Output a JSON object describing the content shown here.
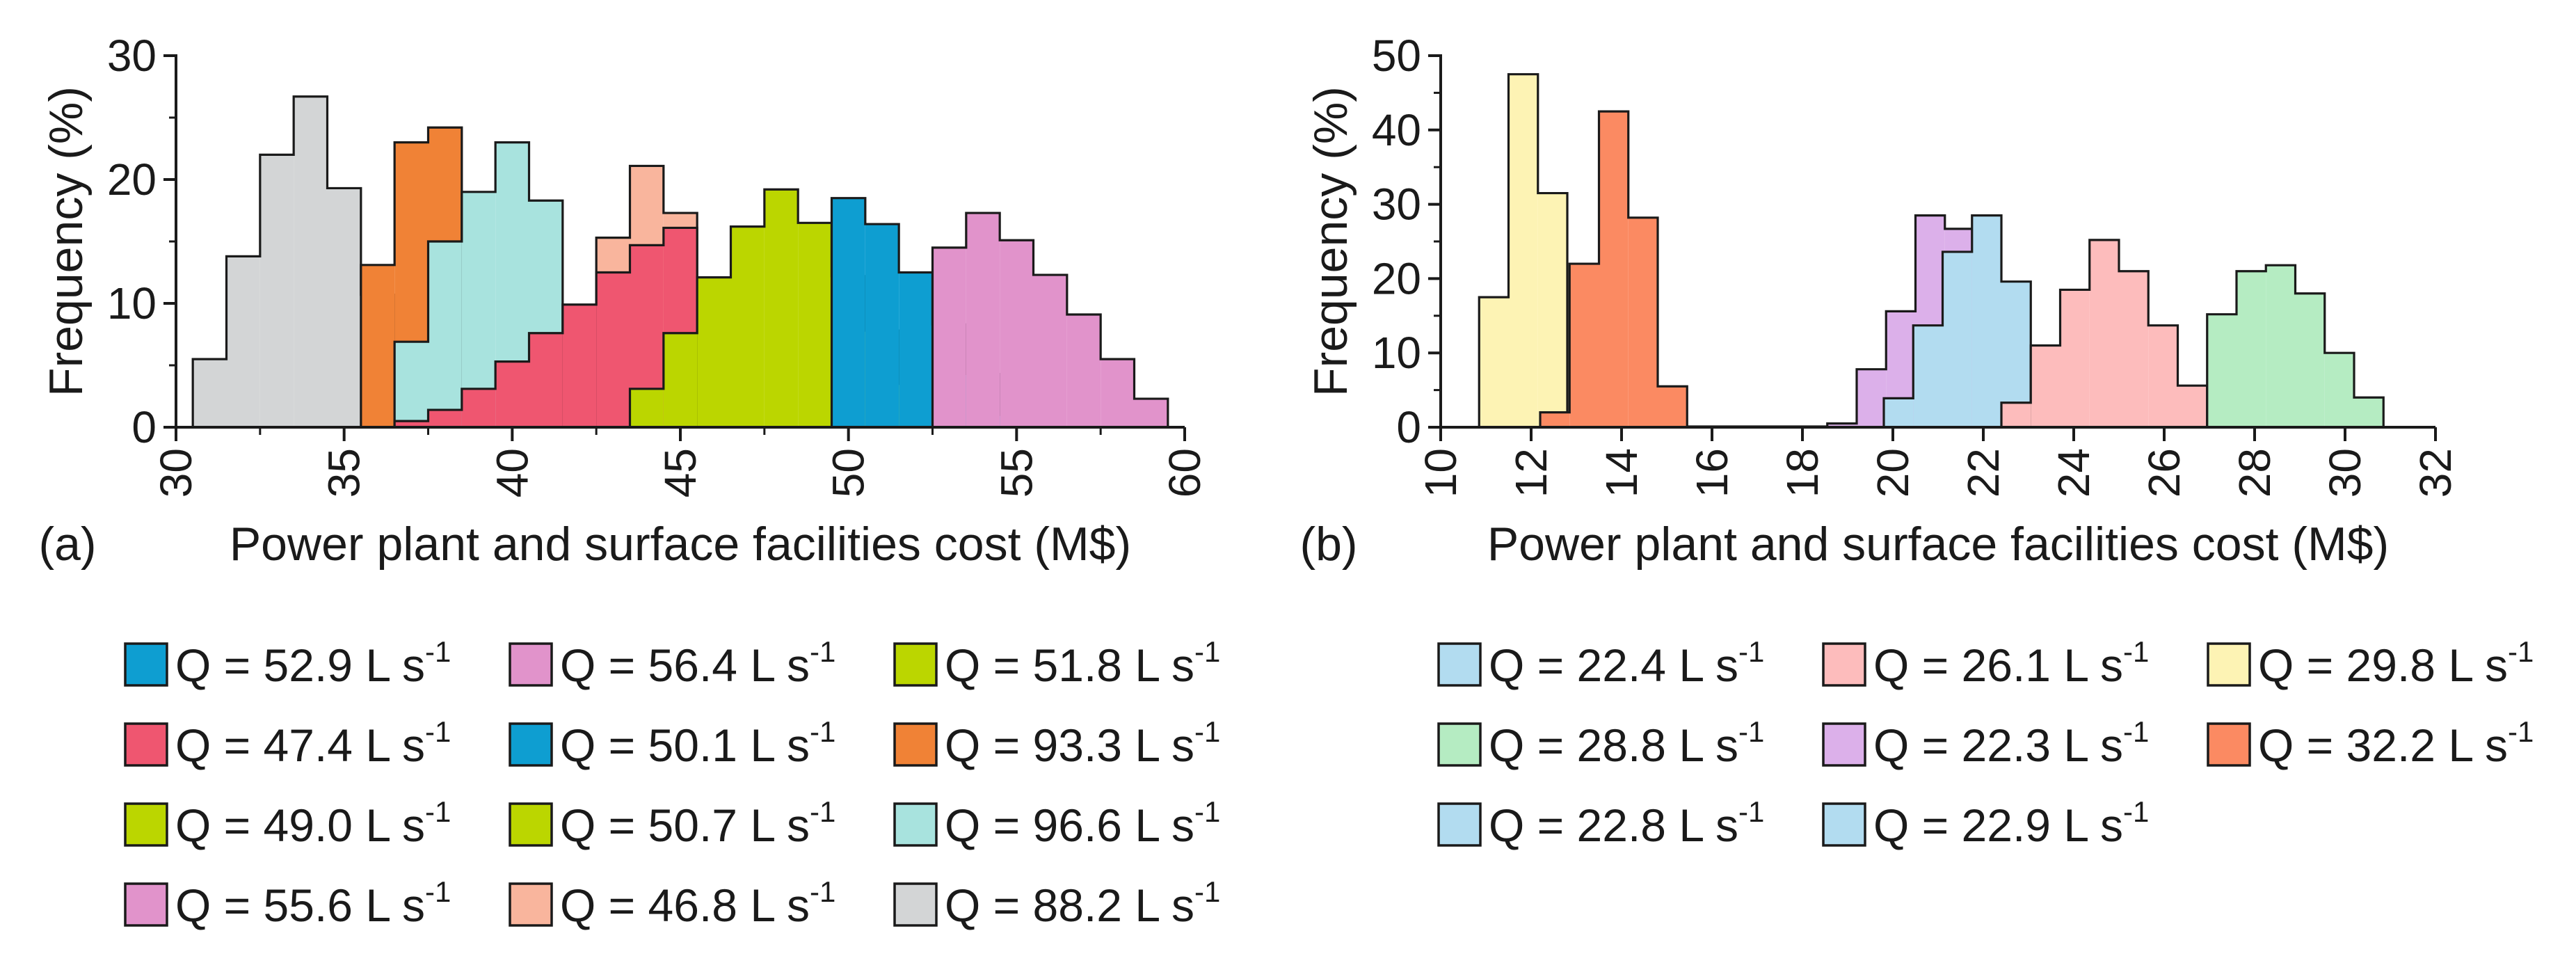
{
  "panels": [
    {
      "panel_label": "(a)",
      "chart_data": {
        "type": "histogram",
        "xlabel": "Power plant and surface facilities cost (M$)",
        "ylabel": "Frequency (%)",
        "xlim": [
          30,
          60
        ],
        "ylim": [
          0,
          30
        ],
        "x_ticks": [
          30,
          35,
          40,
          45,
          50,
          55,
          60
        ],
        "y_ticks": [
          0,
          10,
          20,
          30
        ],
        "series": [
          {
            "name": "Q = 88.2 L s",
            "color": "#d3d5d6",
            "bin_edges": [
              30.5,
              31.5,
              32.5,
              33.5,
              34.5,
              35.5,
              36.5,
              37.5
            ],
            "values": [
              5.5,
              13.8,
              22.0,
              26.7,
              19.3,
              10.7,
              2.5
            ]
          },
          {
            "name": "Q = 93.3 L s",
            "color": "#f08236",
            "bin_edges": [
              35.5,
              36.5,
              37.5,
              38.5
            ],
            "values": [
              13.1,
              23.0,
              24.2
            ]
          },
          {
            "name": "Q = 96.6 L s",
            "color": "#a8e3de",
            "bin_edges": [
              36.5,
              37.5,
              38.5,
              39.5,
              40.5,
              41.5
            ],
            "values": [
              6.9,
              15.0,
              19.0,
              23.0,
              18.3
            ]
          },
          {
            "name": "Q = 46.8 L s",
            "color": "#f9b59d",
            "bin_edges": [
              42.5,
              43.5,
              44.5,
              45.5
            ],
            "values": [
              15.3,
              21.1,
              17.3
            ]
          },
          {
            "name": "Q = 47.4 L s",
            "color": "#ef5670",
            "bin_edges": [
              36.5,
              37.5,
              38.5,
              39.5,
              40.5,
              41.5,
              42.5,
              43.5,
              44.5,
              45.5
            ],
            "values": [
              0.5,
              1.4,
              3.1,
              5.3,
              7.6,
              9.9,
              12.5,
              14.7,
              16.1
            ]
          },
          {
            "name": "Q = 51.8 L s",
            "color": "#bbd600",
            "bin_edges": [
              43.5,
              44.5,
              45.5,
              46.5,
              47.5,
              48.5,
              49.5,
              50.5,
              51.5,
              52.5
            ],
            "values": [
              3.1,
              7.6,
              12.1,
              16.2,
              19.2,
              16.5,
              12.2,
              7.8,
              3.5
            ]
          },
          {
            "name": "Q = 50.1 L s",
            "color": "#0e9ed1",
            "bin_edges": [
              49.5,
              50.5,
              51.5,
              52.5,
              53.5,
              54.5,
              55.5
            ],
            "values": [
              18.5,
              16.4,
              12.5,
              8.3,
              4.3,
              1.0
            ]
          },
          {
            "name": "Q = 56.4 L s",
            "color": "#e193cb",
            "bin_edges": [
              52.5,
              53.5,
              54.5,
              55.5,
              56.5,
              57.5,
              58.5,
              59.5
            ],
            "values": [
              14.5,
              17.3,
              15.1,
              12.3,
              9.1,
              5.5,
              2.3
            ]
          }
        ]
      },
      "legend": [
        {
          "label": "Q = 52.9 L s",
          "sup": "-1",
          "color": "#0e9ed1"
        },
        {
          "label": "Q = 56.4 L s",
          "sup": "-1",
          "color": "#e193cb"
        },
        {
          "label": "Q = 51.8 L s",
          "sup": "-1",
          "color": "#bbd600"
        },
        {
          "label": "Q = 47.4 L s",
          "sup": "-1",
          "color": "#ef5670"
        },
        {
          "label": "Q = 50.1 L s",
          "sup": "-1",
          "color": "#0e9ed1"
        },
        {
          "label": "Q = 93.3 L s",
          "sup": "-1",
          "color": "#f08236"
        },
        {
          "label": "Q = 49.0 L s",
          "sup": "-1",
          "color": "#bbd600"
        },
        {
          "label": "Q = 50.7 L s",
          "sup": "-1",
          "color": "#bbd600"
        },
        {
          "label": "Q = 96.6 L s",
          "sup": "-1",
          "color": "#a8e3de"
        },
        {
          "label": "Q = 55.6 L s",
          "sup": "-1",
          "color": "#e193cb"
        },
        {
          "label": "Q = 46.8 L s",
          "sup": "-1",
          "color": "#f9b59d"
        },
        {
          "label": "Q = 88.2 L s",
          "sup": "-1",
          "color": "#d3d5d6"
        }
      ]
    },
    {
      "panel_label": "(b)",
      "chart_data": {
        "type": "histogram",
        "xlabel": "Power plant and surface facilities cost (M$)",
        "ylabel": "Frequency (%)",
        "xlim": [
          10,
          32
        ],
        "ylim": [
          0,
          50
        ],
        "x_ticks": [
          10,
          12,
          14,
          16,
          18,
          20,
          22,
          24,
          26,
          28,
          30,
          32
        ],
        "y_ticks": [
          0,
          10,
          20,
          30,
          40,
          50
        ],
        "series": [
          {
            "name": "Q = 29.8 L s",
            "color": "#fdf3b4",
            "bin_edges": [
              10.85,
              11.5,
              12.15,
              12.8
            ],
            "values": [
              17.5,
              47.5,
              31.5
            ]
          },
          {
            "name": "Q = 32.2 L s",
            "color": "#fb8a62",
            "bin_edges": [
              12.2,
              12.85,
              13.5,
              14.15,
              14.8,
              15.45,
              16.1,
              16.75,
              17.4,
              18.05,
              18.7
            ],
            "values": [
              2.0,
              22.0,
              42.5,
              28.2,
              5.5,
              0.1,
              0.1,
              0.1,
              0.1,
              0.1
            ]
          },
          {
            "name": "Q = 22.3 L s",
            "color": "#dcb0ea",
            "bin_edges": [
              18.55,
              19.2,
              19.85,
              20.5,
              21.15,
              21.8,
              22.45
            ],
            "values": [
              0.5,
              7.8,
              15.6,
              28.5,
              26.7,
              17.8
            ]
          },
          {
            "name": "Q = 22.4 L s",
            "color": "#b2dcf0",
            "bin_edges": [
              19.8,
              20.45,
              21.1,
              21.75,
              22.4,
              23.05
            ],
            "values": [
              3.9,
              13.7,
              23.6,
              28.5,
              19.6
            ]
          },
          {
            "name": "Q = 26.1 L s",
            "color": "#fdbcbc",
            "bin_edges": [
              22.4,
              23.05,
              23.7,
              24.35,
              25.0,
              25.65,
              26.3,
              26.95
            ],
            "values": [
              3.3,
              11.0,
              18.5,
              25.2,
              21.0,
              13.7,
              5.6
            ]
          },
          {
            "name": "Q = 28.8 L s",
            "color": "#b5ecc2",
            "bin_edges": [
              26.95,
              27.6,
              28.25,
              28.9,
              29.55,
              30.2,
              30.85
            ],
            "values": [
              15.2,
              21.0,
              21.8,
              18.0,
              10.0,
              4.0
            ]
          }
        ]
      },
      "legend": [
        {
          "label": "Q = 22.4 L s",
          "sup": "-1",
          "color": "#b2dcf0"
        },
        {
          "label": "Q = 26.1 L s",
          "sup": "-1",
          "color": "#fdbcbc"
        },
        {
          "label": "Q = 29.8 L s",
          "sup": "-1",
          "color": "#fdf3b4"
        },
        {
          "label": "Q = 28.8 L s",
          "sup": "-1",
          "color": "#b5ecc2"
        },
        {
          "label": "Q = 22.3 L s",
          "sup": "-1",
          "color": "#dcb0ea"
        },
        {
          "label": "Q = 32.2 L s",
          "sup": "-1",
          "color": "#fb8a62"
        },
        {
          "label": "Q = 22.8 L s",
          "sup": "-1",
          "color": "#b2dcf0"
        },
        {
          "label": "Q = 22.9 L s",
          "sup": "-1",
          "color": "#b2dcf0"
        }
      ]
    }
  ]
}
